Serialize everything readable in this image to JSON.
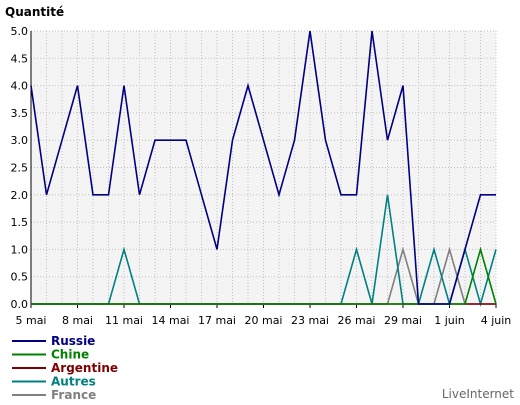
{
  "chart_data": {
    "type": "line",
    "title": "Quantité",
    "credit": "LiveInternet",
    "ylim": [
      0,
      5
    ],
    "y_ticks": [
      "0.0",
      "0.5",
      "1.0",
      "1.5",
      "2.0",
      "2.5",
      "3.0",
      "3.5",
      "4.0",
      "4.5",
      "5.0"
    ],
    "x_tick_labels": [
      "5 mai",
      "8 mai",
      "11 mai",
      "14 mai",
      "17 mai",
      "20 mai",
      "23 mai",
      "26 mai",
      "29 mai",
      "1 juin",
      "4 juin"
    ],
    "x_tick_every": 3,
    "n_points": 31,
    "grid": true,
    "legend_position": "bottom-left",
    "series": [
      {
        "name": "Russie",
        "color": "#000080",
        "values": [
          4,
          2,
          3,
          4,
          2,
          2,
          4,
          2,
          3,
          3,
          3,
          2,
          1,
          3,
          4,
          3,
          2,
          3,
          5,
          3,
          2,
          2,
          5,
          3,
          4,
          0,
          0,
          0,
          1,
          2,
          2
        ]
      },
      {
        "name": "Chine",
        "color": "#008000",
        "values": [
          0,
          0,
          0,
          0,
          0,
          0,
          0,
          0,
          0,
          0,
          0,
          0,
          0,
          0,
          0,
          0,
          0,
          0,
          0,
          0,
          0,
          0,
          0,
          0,
          0,
          0,
          0,
          0,
          0,
          1,
          0
        ]
      },
      {
        "name": "Argentine",
        "color": "#800000",
        "values": [
          0,
          0,
          0,
          0,
          0,
          0,
          0,
          0,
          0,
          0,
          0,
          0,
          0,
          0,
          0,
          0,
          0,
          0,
          0,
          0,
          0,
          0,
          0,
          0,
          0,
          0,
          0,
          0,
          0,
          0,
          0
        ]
      },
      {
        "name": "Autres",
        "color": "#008080",
        "values": [
          0,
          0,
          0,
          0,
          0,
          0,
          1,
          0,
          0,
          0,
          0,
          0,
          0,
          0,
          0,
          0,
          0,
          0,
          0,
          0,
          0,
          1,
          0,
          2,
          0,
          0,
          1,
          0,
          1,
          0,
          1
        ]
      },
      {
        "name": "France",
        "color": "#808080",
        "values": [
          0,
          0,
          0,
          0,
          0,
          0,
          0,
          0,
          0,
          0,
          0,
          0,
          0,
          0,
          0,
          0,
          0,
          0,
          0,
          0,
          0,
          0,
          0,
          0,
          1,
          0,
          0,
          1,
          0,
          0,
          0
        ]
      }
    ]
  }
}
